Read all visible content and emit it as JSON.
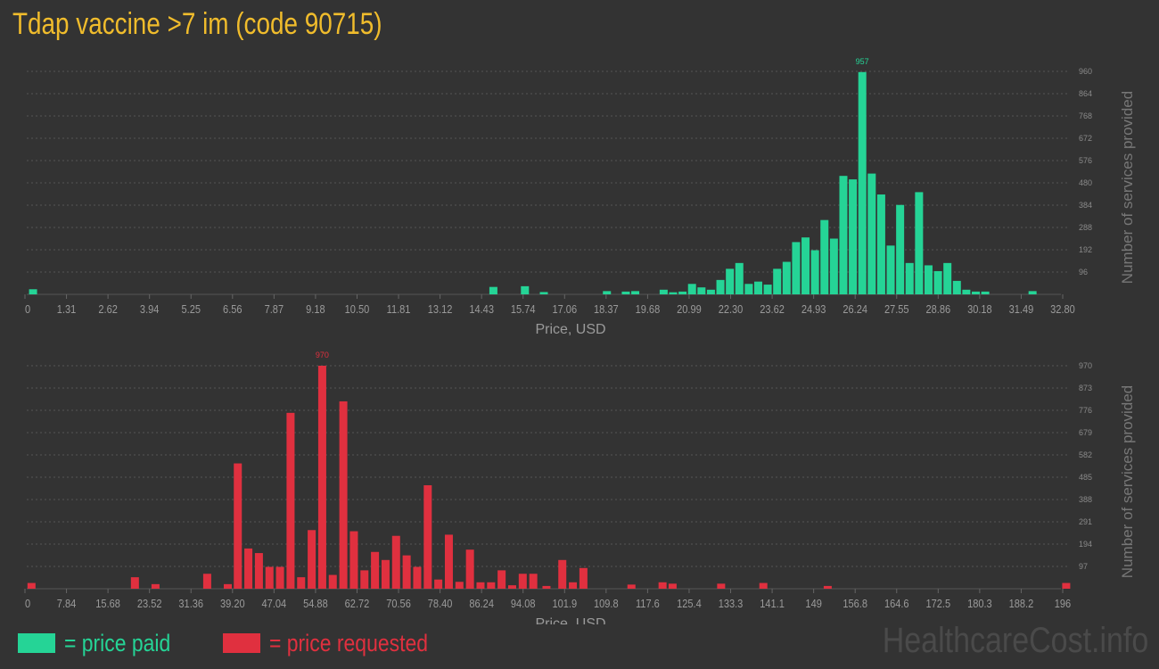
{
  "title": "Tdap vaccine >7 im (code 90715)",
  "legend": {
    "paid_label": "= price paid",
    "requested_label": "= price requested",
    "paid_color": "#25d496",
    "requested_color": "#e0303f"
  },
  "watermark": "HealthcareCost.info",
  "chart_data": [
    {
      "type": "bar",
      "name": "price paid",
      "color": "#25d496",
      "xlabel": "Price, USD",
      "ylabel": "Number of services provided",
      "xlim": [
        0,
        32.8
      ],
      "ylim": [
        0,
        960
      ],
      "x_ticks": [
        "0",
        "1.31",
        "2.62",
        "3.94",
        "5.25",
        "6.56",
        "7.87",
        "9.18",
        "10.50",
        "11.81",
        "13.12",
        "14.43",
        "15.74",
        "17.06",
        "18.37",
        "19.68",
        "20.99",
        "22.30",
        "23.62",
        "24.93",
        "26.24",
        "27.55",
        "28.86",
        "30.18",
        "31.49",
        "32.80"
      ],
      "y_ticks": [
        "96",
        "192",
        "288",
        "384",
        "480",
        "576",
        "672",
        "768",
        "864",
        "960"
      ],
      "peak_label": "957",
      "x": [
        0.2,
        14.8,
        15.8,
        16.4,
        18.4,
        19.0,
        19.3,
        20.2,
        20.5,
        20.8,
        21.1,
        21.4,
        21.7,
        22.0,
        22.3,
        22.6,
        22.9,
        23.2,
        23.5,
        23.8,
        24.1,
        24.4,
        24.7,
        25.0,
        25.3,
        25.6,
        25.9,
        26.2,
        26.5,
        26.8,
        27.1,
        27.4,
        27.7,
        28.0,
        28.3,
        28.6,
        28.9,
        29.2,
        29.5,
        29.8,
        30.1,
        30.4,
        30.7,
        31.0,
        31.3,
        31.9
      ],
      "values": [
        22,
        32,
        35,
        10,
        14,
        12,
        14,
        20,
        9,
        12,
        45,
        30,
        20,
        62,
        110,
        135,
        45,
        55,
        42,
        110,
        140,
        225,
        245,
        190,
        320,
        240,
        510,
        495,
        957,
        520,
        430,
        210,
        385,
        135,
        440,
        125,
        100,
        135,
        58,
        20,
        12,
        12,
        0,
        0,
        0,
        14
      ]
    },
    {
      "type": "bar",
      "name": "price requested",
      "color": "#e0303f",
      "xlabel": "Price, USD",
      "ylabel": "Number of services provided",
      "xlim": [
        0,
        196
      ],
      "ylim": [
        0,
        970
      ],
      "x_ticks": [
        "0",
        "7.84",
        "15.68",
        "23.52",
        "31.36",
        "39.20",
        "47.04",
        "54.88",
        "62.72",
        "70.56",
        "78.40",
        "86.24",
        "94.08",
        "101.9",
        "109.8",
        "117.6",
        "125.4",
        "133.3",
        "141.1",
        "149",
        "156.8",
        "164.6",
        "172.5",
        "180.3",
        "188.2",
        "196"
      ],
      "y_ticks": [
        "97",
        "194",
        "291",
        "388",
        "485",
        "582",
        "679",
        "776",
        "873",
        "970"
      ],
      "peak_label": "970",
      "x": [
        0.9,
        20.5,
        24.4,
        34.2,
        38.1,
        40.0,
        42.0,
        44.0,
        46.0,
        48.0,
        50.0,
        52.0,
        54.0,
        56.0,
        58.0,
        60.0,
        62.0,
        64.0,
        66.0,
        68.0,
        70.0,
        72.0,
        74.0,
        76.0,
        78.0,
        80.0,
        82.0,
        84.0,
        86.0,
        88.0,
        90.0,
        92.0,
        94.0,
        96.0,
        98.5,
        101.5,
        103.5,
        105.5,
        114.6,
        120.5,
        122.4,
        131.6,
        139.6,
        151.8,
        197.0
      ],
      "values": [
        25,
        50,
        20,
        65,
        20,
        545,
        175,
        155,
        95,
        95,
        765,
        50,
        255,
        970,
        60,
        815,
        250,
        80,
        160,
        125,
        230,
        145,
        95,
        450,
        40,
        235,
        30,
        170,
        28,
        28,
        80,
        15,
        65,
        65,
        12,
        125,
        28,
        90,
        18,
        28,
        22,
        22,
        25,
        12,
        25
      ]
    }
  ]
}
